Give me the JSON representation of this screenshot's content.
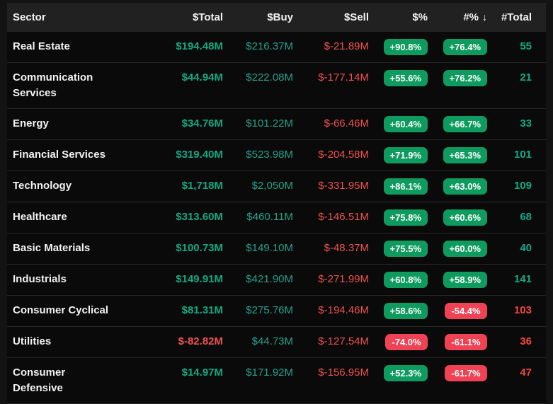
{
  "table": {
    "columns": [
      "Sector",
      "$Total",
      "$Buy",
      "$Sell",
      "$%",
      "#%",
      "#Total"
    ],
    "sort": {
      "column": "#%",
      "direction": "descending",
      "icon": "↓"
    },
    "rows": [
      {
        "sector": "Real Estate",
        "total": "$194.48M",
        "buy": "$216.37M",
        "sell": "$-21.89M",
        "pct_dollar": "+90.8%",
        "pct_count": "+76.4%",
        "count": "55",
        "count_color": "teal"
      },
      {
        "sector": "Communication Services",
        "total": "$44.94M",
        "buy": "$222.08M",
        "sell": "$-177.14M",
        "pct_dollar": "+55.6%",
        "pct_count": "+76.2%",
        "count": "21",
        "count_color": "teal"
      },
      {
        "sector": "Energy",
        "total": "$34.76M",
        "buy": "$101.22M",
        "sell": "$-66.46M",
        "pct_dollar": "+60.4%",
        "pct_count": "+66.7%",
        "count": "33",
        "count_color": "teal"
      },
      {
        "sector": "Financial Services",
        "total": "$319.40M",
        "buy": "$523.98M",
        "sell": "$-204.58M",
        "pct_dollar": "+71.9%",
        "pct_count": "+65.3%",
        "count": "101",
        "count_color": "teal"
      },
      {
        "sector": "Technology",
        "total": "$1,718M",
        "buy": "$2,050M",
        "sell": "$-331.95M",
        "pct_dollar": "+86.1%",
        "pct_count": "+63.0%",
        "count": "109",
        "count_color": "teal"
      },
      {
        "sector": "Healthcare",
        "total": "$313.60M",
        "buy": "$460.11M",
        "sell": "$-146.51M",
        "pct_dollar": "+75.8%",
        "pct_count": "+60.6%",
        "count": "68",
        "count_color": "teal"
      },
      {
        "sector": "Basic Materials",
        "total": "$100.73M",
        "buy": "$149.10M",
        "sell": "$-48.37M",
        "pct_dollar": "+75.5%",
        "pct_count": "+60.0%",
        "count": "40",
        "count_color": "teal"
      },
      {
        "sector": "Industrials",
        "total": "$149.91M",
        "buy": "$421.90M",
        "sell": "$-271.99M",
        "pct_dollar": "+60.8%",
        "pct_count": "+58.9%",
        "count": "141",
        "count_color": "teal"
      },
      {
        "sector": "Consumer Cyclical",
        "total": "$81.31M",
        "buy": "$275.76M",
        "sell": "$-194.46M",
        "pct_dollar": "+58.6%",
        "pct_count": "-54.4%",
        "count": "103",
        "count_color": "red"
      },
      {
        "sector": "Utilities",
        "total": "$-82.82M",
        "buy": "$44.73M",
        "sell": "$-127.54M",
        "pct_dollar": "-74.0%",
        "pct_count": "-61.1%",
        "count": "36",
        "count_color": "red"
      },
      {
        "sector": "Consumer Defensive",
        "total": "$14.97M",
        "buy": "$171.92M",
        "sell": "$-156.95M",
        "pct_dollar": "+52.3%",
        "pct_count": "-61.7%",
        "count": "47",
        "count_color": "red"
      }
    ]
  },
  "colors": {
    "page_bg": "#131313",
    "header_bg": "#212121",
    "row_bg": "#0a0a0a",
    "separator": "#272727",
    "positive_teal": "#14a983",
    "buy_teal": "#26a18c",
    "negative_red": "#ef5350",
    "count_red": "#f0483f",
    "badge_green": "#0f9b5f",
    "badge_red": "#ef4355"
  }
}
